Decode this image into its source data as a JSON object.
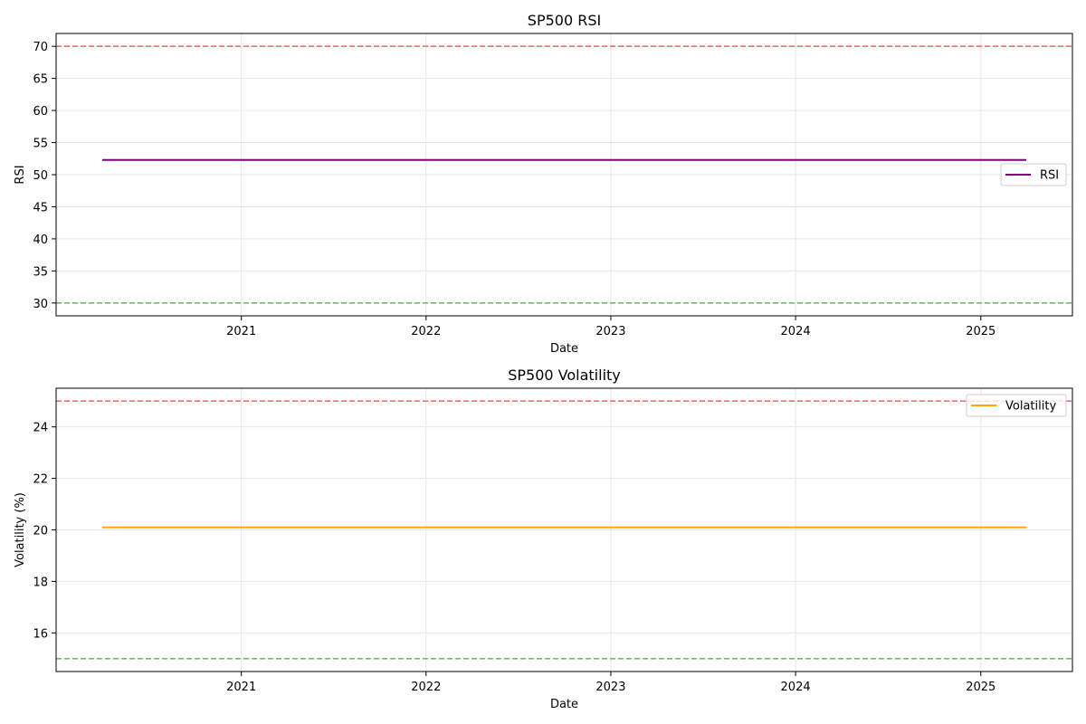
{
  "chart_data": [
    {
      "type": "line",
      "title": "SP500 RSI",
      "xlabel": "Date",
      "ylabel": "RSI",
      "xlim": [
        "2020-01-01",
        "2025-07-01"
      ],
      "ylim": [
        28,
        72
      ],
      "x_ticks": [
        "2021",
        "2022",
        "2023",
        "2024",
        "2025"
      ],
      "y_ticks": [
        30,
        35,
        40,
        45,
        50,
        55,
        60,
        65,
        70
      ],
      "grid": true,
      "legend_position": "center-right",
      "series": [
        {
          "name": "RSI",
          "color": "#800080",
          "x": [
            "2020-04-01",
            "2025-04-01"
          ],
          "y": [
            52.3,
            52.3
          ]
        }
      ],
      "reference_lines": [
        {
          "y": 70,
          "color": "#ff6b6b",
          "style": "dashed"
        },
        {
          "y": 30,
          "color": "#6abf69",
          "style": "dashed"
        }
      ]
    },
    {
      "type": "line",
      "title": "SP500 Volatility",
      "xlabel": "Date",
      "ylabel": "Volatility (%)",
      "xlim": [
        "2020-01-01",
        "2025-07-01"
      ],
      "ylim": [
        14.5,
        25.5
      ],
      "x_ticks": [
        "2021",
        "2022",
        "2023",
        "2024",
        "2025"
      ],
      "y_ticks": [
        16,
        18,
        20,
        22,
        24
      ],
      "grid": true,
      "legend_position": "top-right",
      "series": [
        {
          "name": "Volatility",
          "color": "#ffa500",
          "x": [
            "2020-04-01",
            "2025-04-01"
          ],
          "y": [
            20.1,
            20.1
          ]
        }
      ],
      "reference_lines": [
        {
          "y": 25,
          "color": "#ff6b6b",
          "style": "dashed"
        },
        {
          "y": 15,
          "color": "#6abf69",
          "style": "dashed"
        }
      ]
    }
  ]
}
